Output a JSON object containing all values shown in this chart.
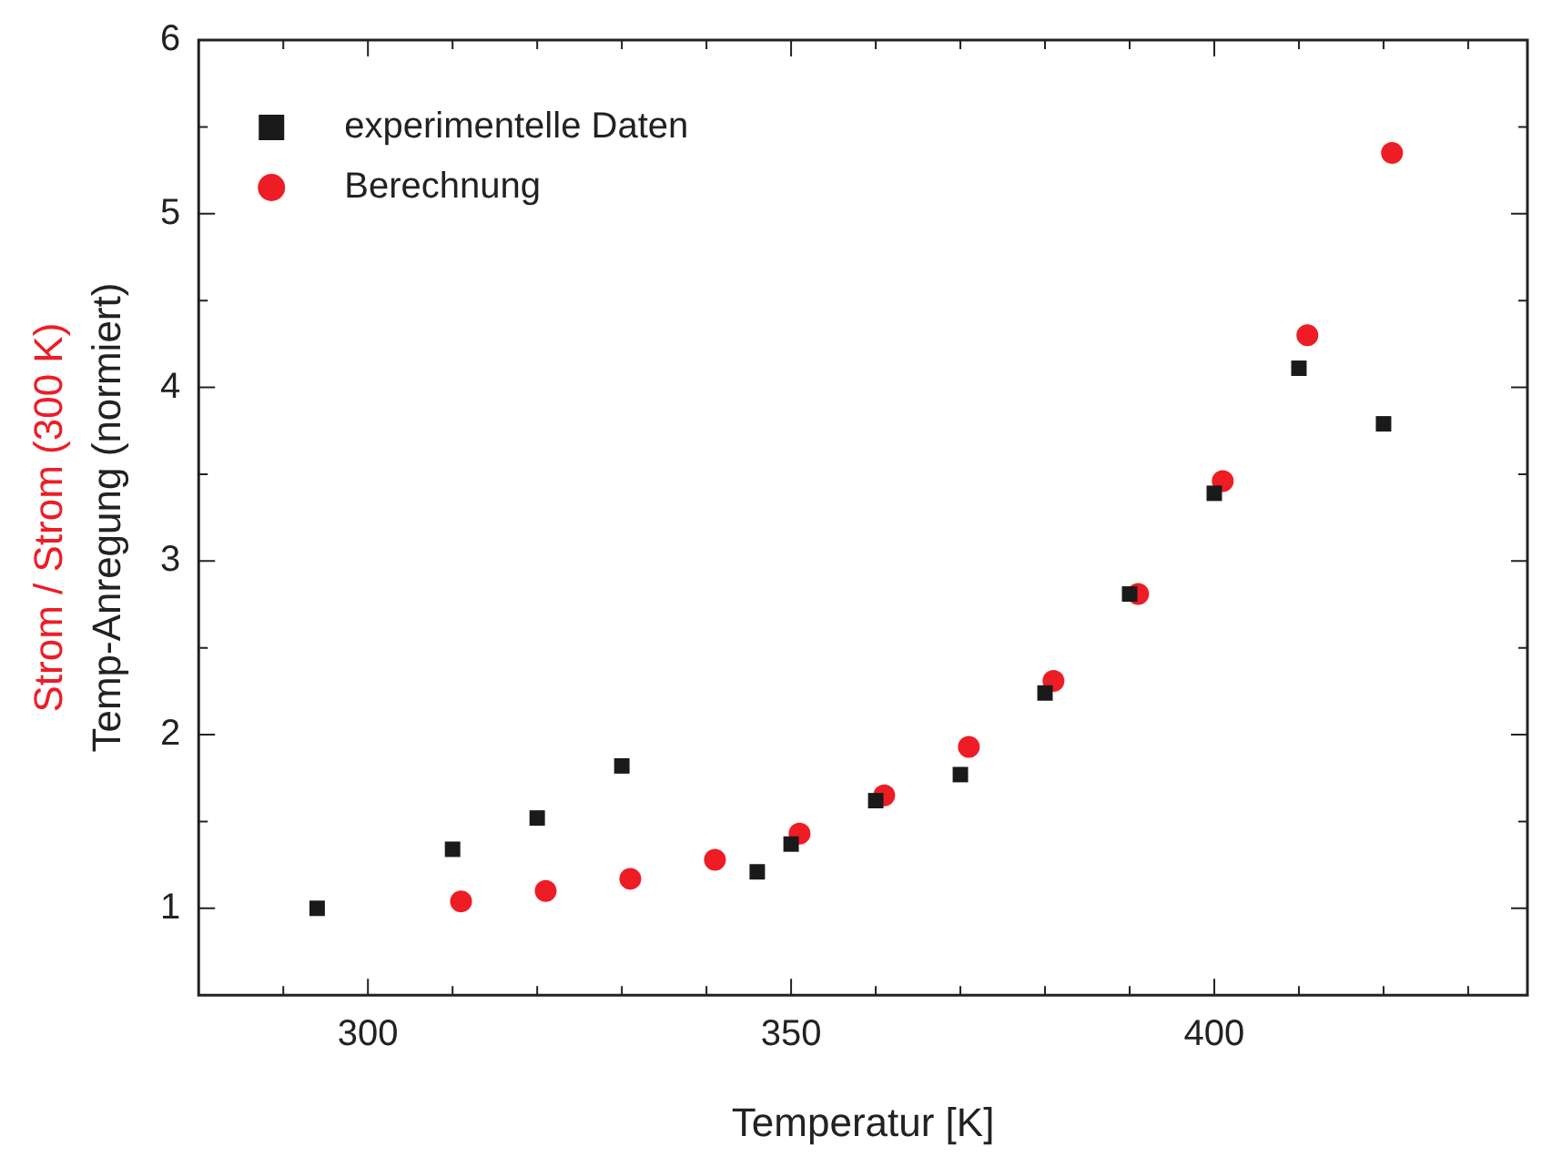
{
  "chart_data": {
    "type": "scatter",
    "xlabel": "Temperatur [K]",
    "ylabel": "Strom / Strom (300 K)\nTemp-Anregung (normiert)",
    "xlim": [
      280,
      437
    ],
    "ylim": [
      0.5,
      6
    ],
    "xticks": [
      {
        "value": 290,
        "label": null
      },
      300,
      {
        "value": 310,
        "label": null
      },
      {
        "value": 320,
        "label": null
      },
      {
        "value": 330,
        "label": null
      },
      {
        "value": 340,
        "label": null
      },
      350,
      {
        "value": 360,
        "label": null
      },
      {
        "value": 370,
        "label": null
      },
      {
        "value": 380,
        "label": null
      },
      {
        "value": 390,
        "label": null
      },
      400,
      {
        "value": 410,
        "label": null
      },
      {
        "value": 420,
        "label": null
      },
      {
        "value": 430,
        "label": null
      }
    ],
    "yticks": [
      1,
      {
        "value": 1.5,
        "label": null
      },
      2,
      {
        "value": 2.5,
        "label": null
      },
      3,
      {
        "value": 3.5,
        "label": null
      },
      4,
      {
        "value": 4.5,
        "label": null
      },
      5,
      {
        "value": 5.5,
        "label": null
      },
      6
    ],
    "legend": "top left",
    "grid": false,
    "series": [
      {
        "name": "experimentelle Daten",
        "color": "#1a1a1a",
        "marker": "square",
        "x": [
          294,
          310,
          320,
          330,
          346,
          350,
          360,
          370,
          380,
          390,
          400,
          410,
          420
        ],
        "values": [
          1.0,
          1.34,
          1.52,
          1.82,
          1.21,
          1.37,
          1.62,
          1.77,
          2.24,
          2.81,
          3.39,
          4.11,
          3.79
        ]
      },
      {
        "name": "Berechnung",
        "color": "#ee1c25",
        "marker": "circle",
        "x": [
          311,
          321,
          331,
          341,
          351,
          361,
          371,
          381,
          391,
          401,
          411,
          421
        ],
        "values": [
          1.04,
          1.1,
          1.17,
          1.28,
          1.43,
          1.65,
          1.93,
          2.31,
          2.81,
          3.46,
          4.3,
          5.35
        ]
      }
    ]
  }
}
